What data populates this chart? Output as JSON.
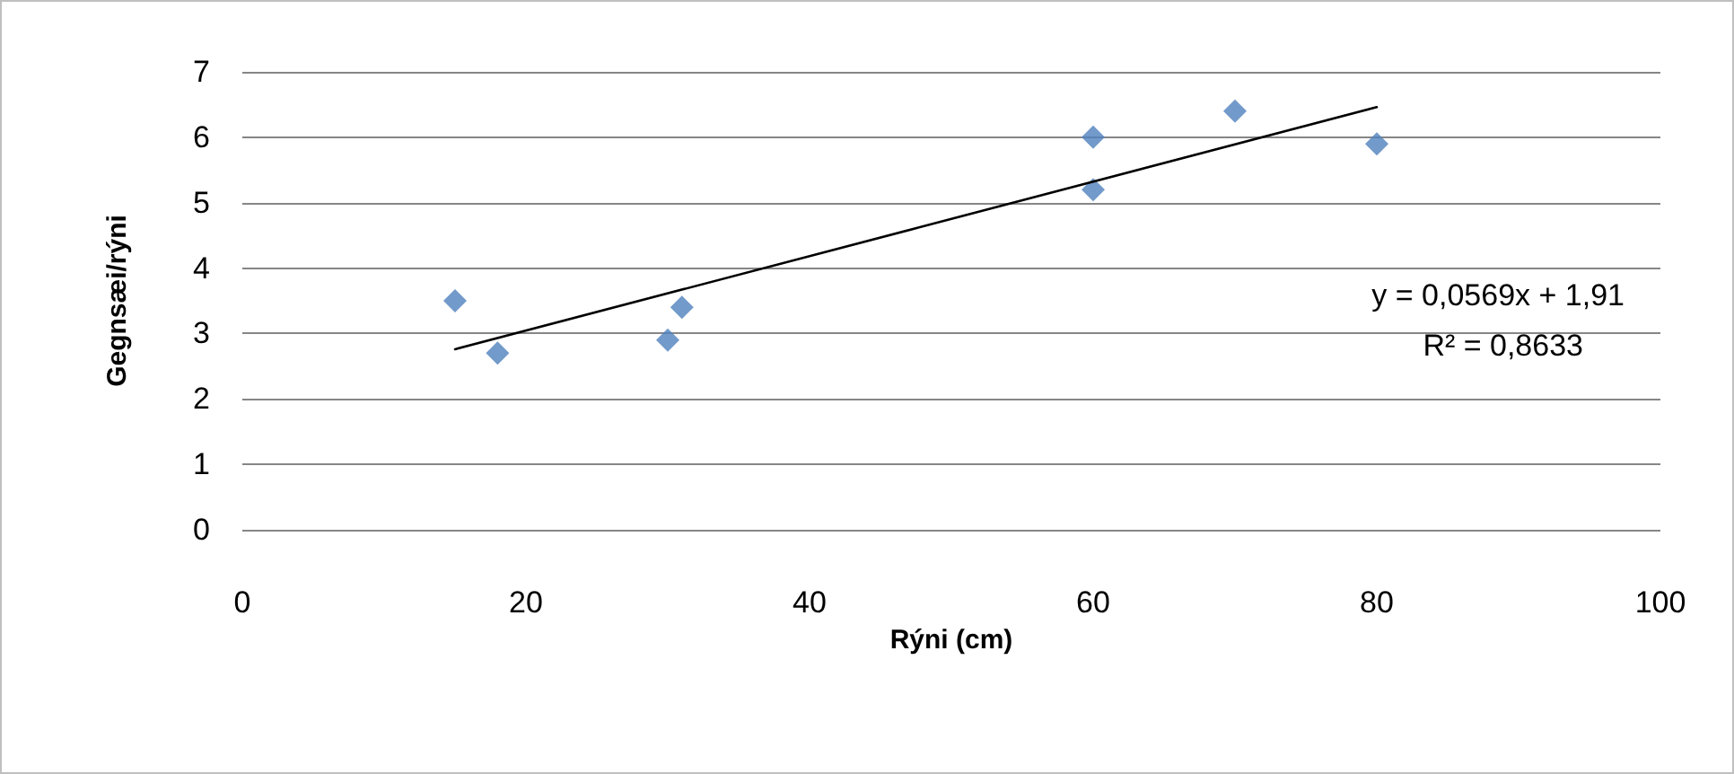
{
  "chart_data": {
    "type": "scatter",
    "xlabel": "Rýni (cm)",
    "ylabel": "Gegnsæi/rýni",
    "xlim": [
      0,
      100
    ],
    "xticks": [
      0,
      20,
      40,
      60,
      80,
      100
    ],
    "ylim": [
      0,
      7
    ],
    "yticks": [
      0,
      1,
      2,
      3,
      4,
      5,
      6,
      7
    ],
    "grid": "y",
    "marker": "diamond",
    "series": [
      {
        "color": "#4f81bd",
        "x": [
          15,
          18,
          30,
          31,
          60,
          60,
          70,
          80
        ],
        "values": [
          3.5,
          2.7,
          2.9,
          3.4,
          6.0,
          5.2,
          6.4,
          5.9
        ]
      },
      {
        "type": "line",
        "color": "#000000",
        "x": [
          15,
          80
        ],
        "values": [
          2.76,
          6.46
        ],
        "marker": "none",
        "line_style": "solid"
      }
    ],
    "annotations": [
      "y = 0,0569x + 1,91",
      "R² = 0,8633"
    ]
  }
}
